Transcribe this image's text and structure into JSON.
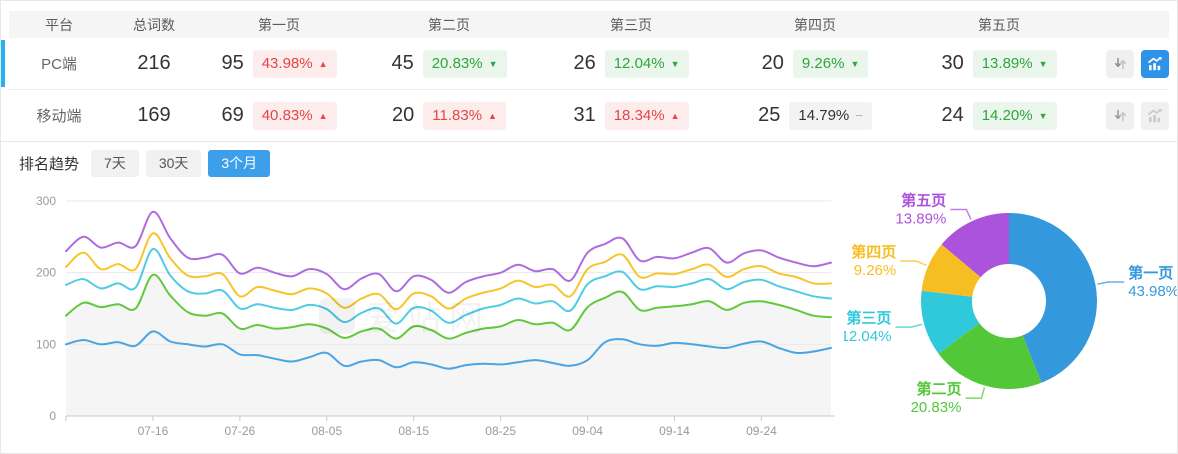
{
  "table": {
    "columns": [
      "平台",
      "总词数",
      "第一页",
      "第二页",
      "第三页",
      "第四页",
      "第五页"
    ],
    "rows": [
      {
        "platform": "PC端",
        "total": "216",
        "selected": true,
        "pages": [
          {
            "count": "95",
            "pct": "43.98%",
            "trend": "up"
          },
          {
            "count": "45",
            "pct": "20.83%",
            "trend": "down"
          },
          {
            "count": "26",
            "pct": "12.04%",
            "trend": "down"
          },
          {
            "count": "20",
            "pct": "9.26%",
            "trend": "down"
          },
          {
            "count": "30",
            "pct": "13.89%",
            "trend": "down"
          }
        ],
        "chart_active": true
      },
      {
        "platform": "移动端",
        "total": "169",
        "selected": false,
        "pages": [
          {
            "count": "69",
            "pct": "40.83%",
            "trend": "up"
          },
          {
            "count": "20",
            "pct": "11.83%",
            "trend": "up"
          },
          {
            "count": "31",
            "pct": "18.34%",
            "trend": "up"
          },
          {
            "count": "25",
            "pct": "14.79%",
            "trend": "flat"
          },
          {
            "count": "24",
            "pct": "14.20%",
            "trend": "down"
          }
        ],
        "chart_active": false
      }
    ]
  },
  "icons": {
    "up": "▲",
    "down": "▼",
    "flat": "−"
  },
  "ui_colors": {
    "accent_blue": "#3d9eea",
    "up_red": "#e64545",
    "down_green": "#2fa53c",
    "neutral_gray": "#b0b0b0",
    "selected_row_bar": "#24b0f2"
  },
  "trend_section": {
    "title": "排名趋势",
    "tabs": [
      {
        "label": "7天",
        "active": false
      },
      {
        "label": "30天",
        "active": false
      },
      {
        "label": "3个月",
        "active": true
      }
    ]
  },
  "watermark": "爱站网",
  "chart_data": [
    {
      "type": "line",
      "title": "排名趋势",
      "period": "3个月",
      "grid": true,
      "legend": "none",
      "ylim": [
        0,
        300
      ],
      "yticks": [
        0,
        100,
        200,
        300
      ],
      "xticks": [
        "07-16",
        "07-26",
        "08-05",
        "08-15",
        "08-25",
        "09-04",
        "09-14",
        "09-24"
      ],
      "note": "values are cumulative keyword counts per ranking page; series 第二页 has a light gray area fill",
      "x": [
        "07-06",
        "07-08",
        "07-10",
        "07-12",
        "07-14",
        "07-16",
        "07-18",
        "07-20",
        "07-22",
        "07-24",
        "07-26",
        "07-28",
        "07-30",
        "08-01",
        "08-03",
        "08-05",
        "08-07",
        "08-09",
        "08-11",
        "08-13",
        "08-15",
        "08-17",
        "08-19",
        "08-21",
        "08-23",
        "08-25",
        "08-27",
        "08-29",
        "08-31",
        "09-02",
        "09-04",
        "09-06",
        "09-08",
        "09-10",
        "09-12",
        "09-14",
        "09-16",
        "09-18",
        "09-20",
        "09-22",
        "09-24",
        "09-26",
        "09-28",
        "09-30",
        "10-02"
      ],
      "series": [
        {
          "name": "第一页",
          "color": "#4ba4e3",
          "values": [
            100,
            106,
            100,
            103,
            98,
            118,
            104,
            100,
            97,
            100,
            86,
            85,
            80,
            76,
            82,
            88,
            70,
            76,
            78,
            68,
            75,
            72,
            66,
            71,
            73,
            72,
            75,
            78,
            74,
            70,
            78,
            103,
            107,
            100,
            98,
            102,
            100,
            97,
            95,
            101,
            104,
            95,
            88,
            90,
            95
          ]
        },
        {
          "name": "第二页",
          "color": "#62c83e",
          "area": true,
          "area_color": "#f5f5f5",
          "values": [
            140,
            158,
            152,
            156,
            150,
            197,
            168,
            145,
            140,
            143,
            122,
            127,
            122,
            124,
            128,
            122,
            109,
            118,
            122,
            108,
            125,
            120,
            108,
            116,
            122,
            125,
            134,
            128,
            130,
            120,
            152,
            165,
            173,
            148,
            151,
            153,
            156,
            160,
            148,
            158,
            160,
            155,
            148,
            140,
            138
          ]
        },
        {
          "name": "第三页",
          "color": "#4fcbe4",
          "values": [
            183,
            191,
            178,
            185,
            179,
            233,
            196,
            174,
            171,
            175,
            150,
            156,
            151,
            148,
            155,
            149,
            131,
            144,
            150,
            129,
            151,
            147,
            130,
            141,
            150,
            155,
            164,
            157,
            160,
            147,
            184,
            195,
            201,
            177,
            181,
            180,
            185,
            191,
            177,
            187,
            190,
            181,
            174,
            167,
            164
          ]
        },
        {
          "name": "第四页",
          "color": "#f7c52b",
          "values": [
            208,
            228,
            205,
            212,
            205,
            255,
            220,
            196,
            195,
            198,
            167,
            180,
            175,
            170,
            178,
            171,
            151,
            164,
            170,
            149,
            171,
            167,
            150,
            164,
            172,
            178,
            189,
            180,
            183,
            167,
            205,
            215,
            225,
            194,
            199,
            198,
            205,
            211,
            194,
            205,
            209,
            199,
            194,
            185,
            185
          ]
        },
        {
          "name": "第五页",
          "color": "#ae6ce0",
          "values": [
            230,
            250,
            235,
            242,
            237,
            285,
            248,
            221,
            221,
            225,
            199,
            207,
            200,
            195,
            205,
            198,
            177,
            192,
            198,
            174,
            195,
            190,
            172,
            187,
            195,
            200,
            211,
            202,
            205,
            189,
            228,
            240,
            248,
            217,
            222,
            220,
            228,
            234,
            214,
            227,
            231,
            221,
            214,
            209,
            214
          ]
        }
      ]
    },
    {
      "type": "pie",
      "donut": true,
      "start_angle": "top",
      "direction": "clockwise",
      "unit": "%",
      "labels": [
        "第一页",
        "第二页",
        "第三页",
        "第四页",
        "第五页"
      ],
      "values": [
        43.98,
        20.83,
        12.04,
        9.26,
        13.89
      ],
      "display": [
        "43.98%",
        "20.83%",
        "12.04%",
        "9.26%",
        "13.89%"
      ],
      "colors": [
        "#3399dc",
        "#52c838",
        "#2fc9db",
        "#f7be23",
        "#ac53de"
      ]
    }
  ]
}
